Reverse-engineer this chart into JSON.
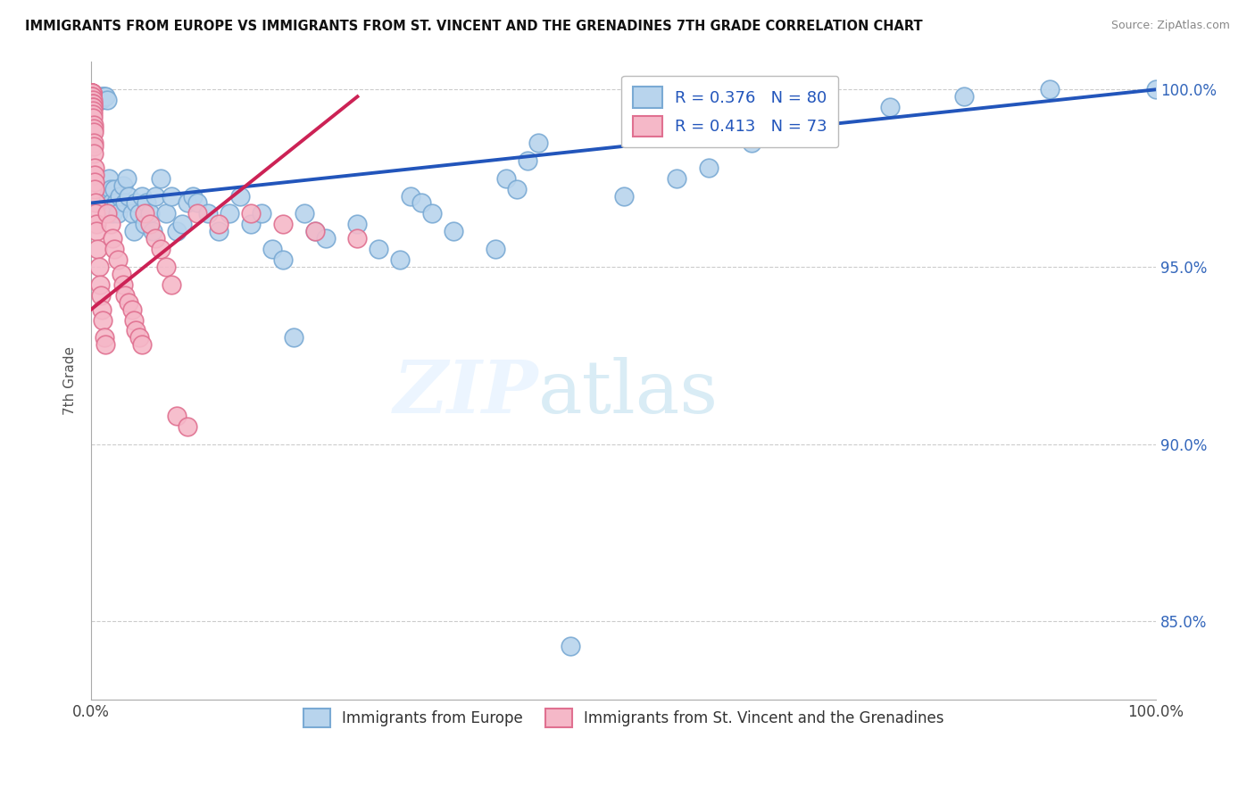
{
  "title": "IMMIGRANTS FROM EUROPE VS IMMIGRANTS FROM ST. VINCENT AND THE GRENADINES 7TH GRADE CORRELATION CHART",
  "source": "Source: ZipAtlas.com",
  "ylabel": "7th Grade",
  "xlim": [
    0.0,
    1.0
  ],
  "ylim": [
    0.828,
    1.008
  ],
  "legend1_label": "R = 0.376   N = 80",
  "legend2_label": "R = 0.413   N = 73",
  "legend_bottom1": "Immigrants from Europe",
  "legend_bottom2": "Immigrants from St. Vincent and the Grenadines",
  "blue_color": "#b8d4ed",
  "pink_color": "#f5b8c8",
  "blue_edge": "#7aaad4",
  "pink_edge": "#e07090",
  "trend_blue": "#2255bb",
  "trend_pink": "#cc2255",
  "blue_dots_x": [
    0.001,
    0.002,
    0.003,
    0.004,
    0.005,
    0.006,
    0.006,
    0.007,
    0.008,
    0.009,
    0.01,
    0.011,
    0.012,
    0.013,
    0.015,
    0.016,
    0.017,
    0.018,
    0.019,
    0.02,
    0.022,
    0.023,
    0.025,
    0.027,
    0.03,
    0.032,
    0.033,
    0.035,
    0.038,
    0.04,
    0.042,
    0.045,
    0.048,
    0.05,
    0.052,
    0.055,
    0.058,
    0.06,
    0.065,
    0.07,
    0.075,
    0.08,
    0.085,
    0.09,
    0.095,
    0.1,
    0.11,
    0.12,
    0.13,
    0.14,
    0.15,
    0.16,
    0.17,
    0.18,
    0.19,
    0.2,
    0.21,
    0.22,
    0.25,
    0.27,
    0.29,
    0.3,
    0.31,
    0.32,
    0.34,
    0.38,
    0.39,
    0.4,
    0.41,
    0.42,
    0.45,
    0.5,
    0.55,
    0.58,
    0.62,
    0.65,
    0.75,
    0.82,
    0.9,
    1.0
  ],
  "blue_dots_y": [
    0.998,
    0.997,
    0.998,
    0.998,
    0.998,
    0.998,
    0.998,
    0.997,
    0.997,
    0.997,
    0.998,
    0.998,
    0.998,
    0.998,
    0.997,
    0.97,
    0.975,
    0.972,
    0.968,
    0.965,
    0.972,
    0.968,
    0.965,
    0.97,
    0.973,
    0.968,
    0.975,
    0.97,
    0.965,
    0.96,
    0.968,
    0.965,
    0.97,
    0.962,
    0.968,
    0.965,
    0.96,
    0.97,
    0.975,
    0.965,
    0.97,
    0.96,
    0.962,
    0.968,
    0.97,
    0.968,
    0.965,
    0.96,
    0.965,
    0.97,
    0.962,
    0.965,
    0.955,
    0.952,
    0.93,
    0.965,
    0.96,
    0.958,
    0.962,
    0.955,
    0.952,
    0.97,
    0.968,
    0.965,
    0.96,
    0.955,
    0.975,
    0.972,
    0.98,
    0.985,
    0.843,
    0.97,
    0.975,
    0.978,
    0.985,
    0.988,
    0.995,
    0.998,
    1.0,
    1.0
  ],
  "pink_dots_x": [
    0.0002,
    0.0003,
    0.0004,
    0.0004,
    0.0005,
    0.0005,
    0.0006,
    0.0006,
    0.0007,
    0.0007,
    0.0008,
    0.0008,
    0.0009,
    0.001,
    0.001,
    0.0011,
    0.0012,
    0.0013,
    0.0014,
    0.0015,
    0.0016,
    0.0017,
    0.0018,
    0.002,
    0.0021,
    0.0022,
    0.0024,
    0.0025,
    0.0026,
    0.003,
    0.003,
    0.0032,
    0.0035,
    0.004,
    0.004,
    0.005,
    0.005,
    0.006,
    0.007,
    0.008,
    0.009,
    0.01,
    0.011,
    0.012,
    0.013,
    0.015,
    0.018,
    0.02,
    0.022,
    0.025,
    0.028,
    0.03,
    0.032,
    0.035,
    0.038,
    0.04,
    0.042,
    0.045,
    0.048,
    0.05,
    0.055,
    0.06,
    0.065,
    0.07,
    0.075,
    0.08,
    0.09,
    0.1,
    0.12,
    0.15,
    0.18,
    0.21,
    0.25
  ],
  "pink_dots_y": [
    0.999,
    0.999,
    0.999,
    0.998,
    0.999,
    0.998,
    0.999,
    0.998,
    0.999,
    0.997,
    0.998,
    0.997,
    0.997,
    0.998,
    0.996,
    0.997,
    0.996,
    0.996,
    0.995,
    0.995,
    0.994,
    0.993,
    0.992,
    0.99,
    0.989,
    0.988,
    0.985,
    0.984,
    0.982,
    0.978,
    0.976,
    0.974,
    0.972,
    0.968,
    0.965,
    0.962,
    0.96,
    0.955,
    0.95,
    0.945,
    0.942,
    0.938,
    0.935,
    0.93,
    0.928,
    0.965,
    0.962,
    0.958,
    0.955,
    0.952,
    0.948,
    0.945,
    0.942,
    0.94,
    0.938,
    0.935,
    0.932,
    0.93,
    0.928,
    0.965,
    0.962,
    0.958,
    0.955,
    0.95,
    0.945,
    0.908,
    0.905,
    0.965,
    0.962,
    0.965,
    0.962,
    0.96,
    0.958
  ],
  "trend_blue_x0": 0.0,
  "trend_blue_y0": 0.968,
  "trend_blue_x1": 1.0,
  "trend_blue_y1": 1.0,
  "trend_pink_x0": 0.0,
  "trend_pink_y0": 0.938,
  "trend_pink_x1": 0.25,
  "trend_pink_y1": 0.998
}
